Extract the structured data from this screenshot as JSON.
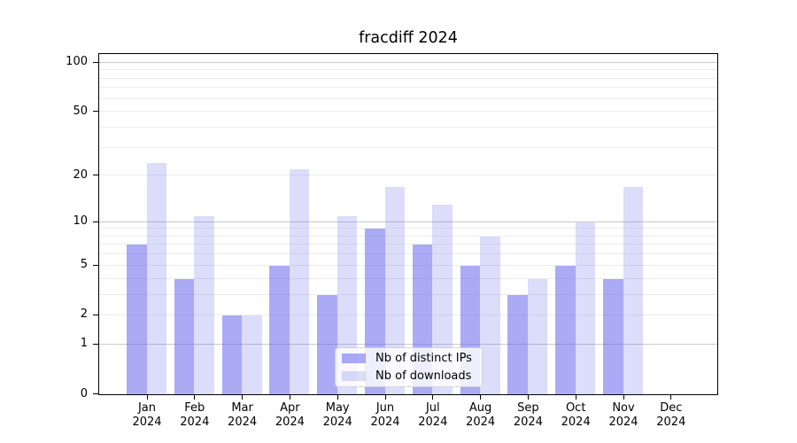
{
  "title": "fracdiff 2024",
  "colors": {
    "bar_distinct_ips": "rgba(92, 92, 235, 0.52)",
    "bar_downloads": "rgba(92, 92, 235, 0.21)",
    "grid_minor": "#ededed",
    "grid_major": "#c9c9c9",
    "spine": "#000000",
    "text": "#000000",
    "legend_background": "rgba(255,255,255,0.8)"
  },
  "chart_data": {
    "type": "bar",
    "title": "fracdiff 2024",
    "x_categories": [
      "Jan",
      "Feb",
      "Mar",
      "Apr",
      "May",
      "Jun",
      "Jul",
      "Aug",
      "Sep",
      "Oct",
      "Nov",
      "Dec"
    ],
    "x_year": "2024",
    "series": [
      {
        "name": "Nb of distinct IPs",
        "values": [
          7,
          4,
          2,
          5,
          3,
          9,
          7,
          5,
          3,
          5,
          4,
          0
        ]
      },
      {
        "name": "Nb of downloads",
        "values": [
          24,
          11,
          2,
          22,
          11,
          17,
          13,
          8,
          4,
          10,
          17,
          0
        ]
      }
    ],
    "yscale": "log1p",
    "ylim": [
      0,
      112
    ],
    "y_tick_values": [
      0,
      1,
      2,
      5,
      10,
      20,
      50,
      100
    ],
    "y_minor_gridlines": [
      2,
      3,
      4,
      5,
      6,
      7,
      8,
      9,
      20,
      30,
      40,
      50,
      60,
      70,
      80,
      90
    ],
    "y_major_gridlines": [
      1,
      10,
      100
    ],
    "grid": "horizontal",
    "legend_position": "lower center"
  }
}
